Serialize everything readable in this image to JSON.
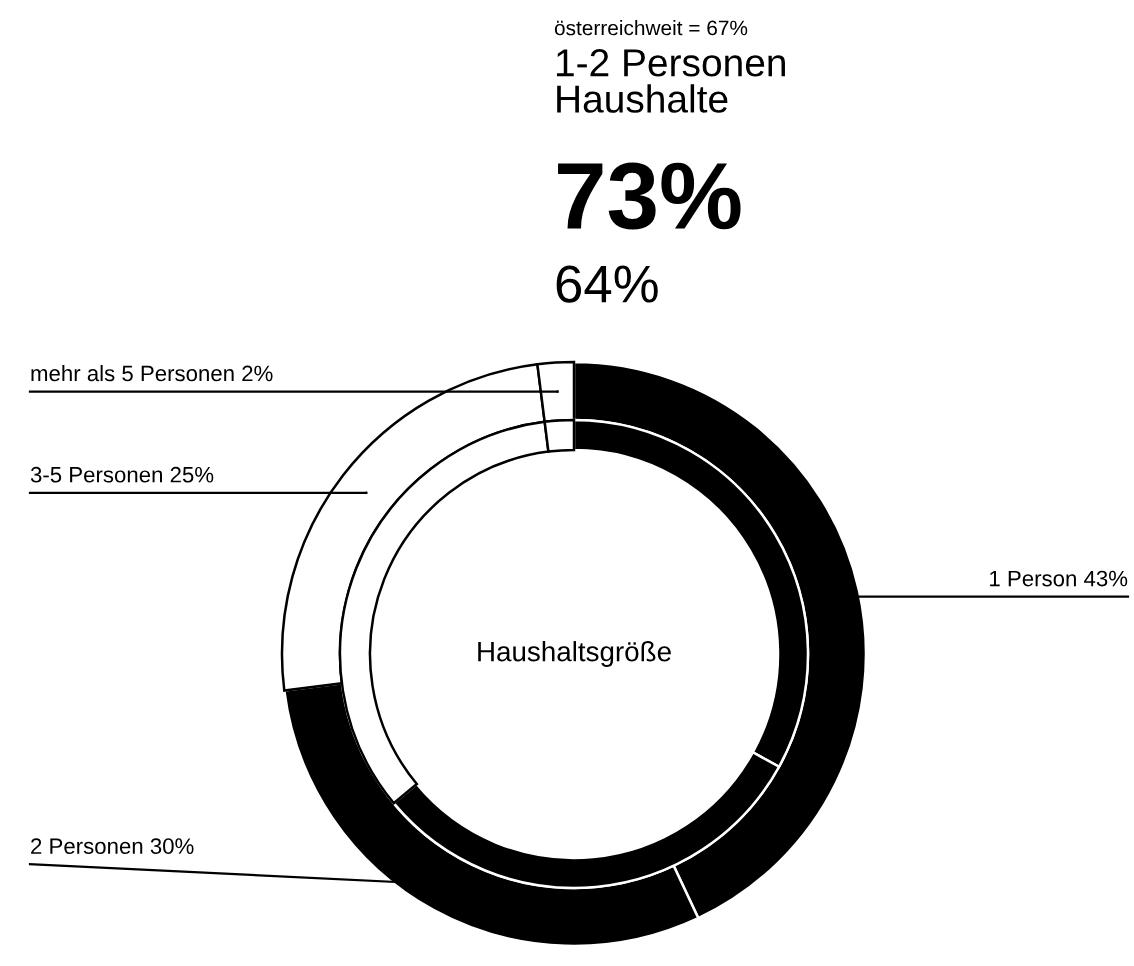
{
  "chart_data": {
    "type": "donut",
    "subtitle": "österreichweit = 67%",
    "title": "1-2 Personen\nHaushalte",
    "categories": [
      "1 Person",
      "2 Personen",
      "3-5 Personen",
      "mehr als 5 Personen"
    ],
    "series": [
      {
        "values": [
          43,
          30,
          25,
          2
        ],
        "colors": [
          "#000000",
          "#000000",
          "#ffffff",
          "#ffffff"
        ],
        "value_labels": [
          "43%",
          "30%",
          "25%",
          "2%"
        ]
      },
      {
        "values": [
          33,
          31,
          34,
          2
        ],
        "colors": [
          "#000000",
          "#000000",
          "#ffffff",
          "#ffffff"
        ]
      }
    ],
    "annotations": [
      "73%",
      "64%",
      "Haushaltsgröße"
    ]
  }
}
